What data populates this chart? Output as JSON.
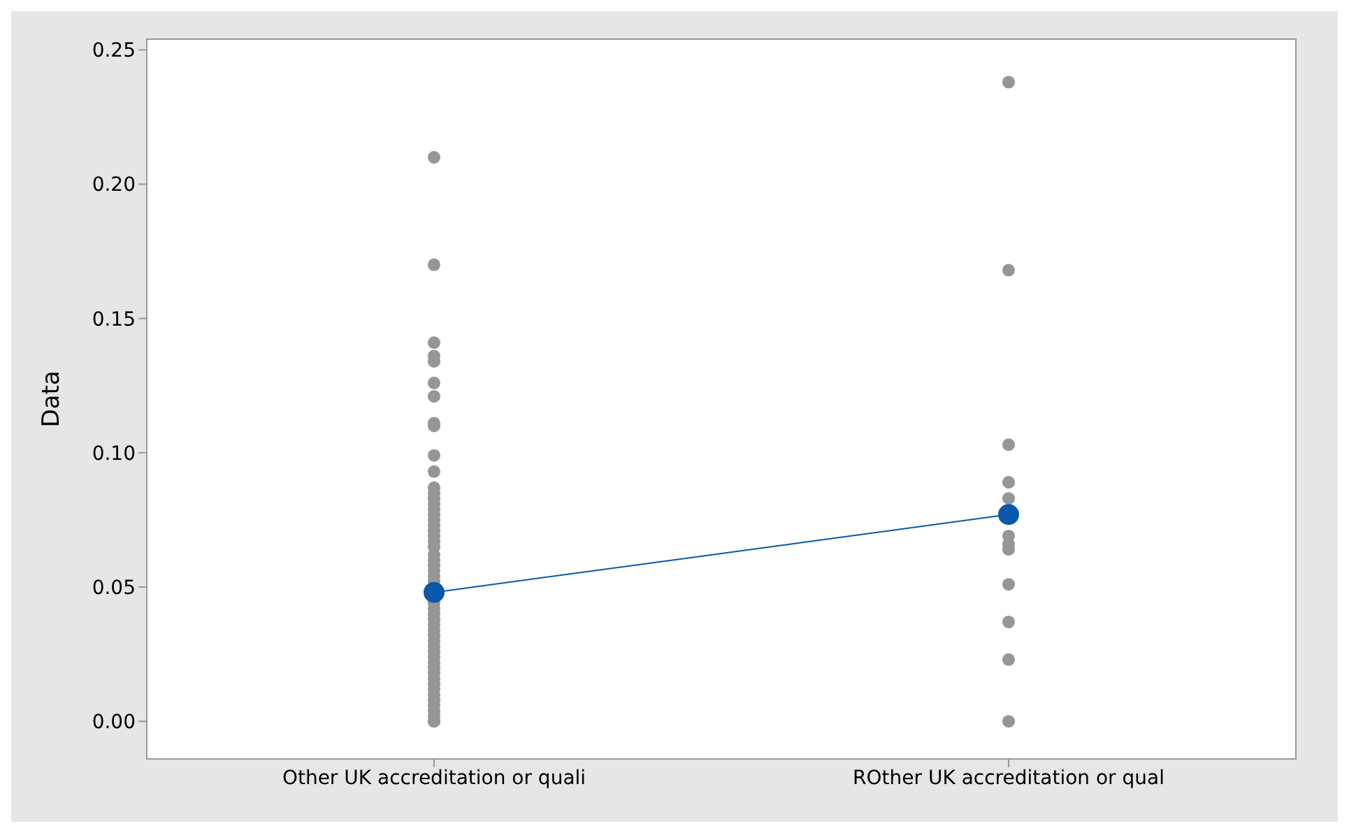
{
  "chart_data": {
    "type": "scatter",
    "ylabel": "Data",
    "categories": [
      "Other UK accreditation or quali",
      "ROther UK accreditation or qual"
    ],
    "ylim": [
      -0.014,
      0.254
    ],
    "yticks": [
      {
        "value": 0,
        "label": "0.00"
      },
      {
        "value": 0.05,
        "label": "0.05"
      },
      {
        "value": 0.1,
        "label": "0.10"
      },
      {
        "value": 0.15,
        "label": "0.15"
      },
      {
        "value": 0.2,
        "label": "0.20"
      },
      {
        "value": 0.25,
        "label": "0.25"
      }
    ],
    "series": [
      {
        "color": "#969696",
        "marker": "circle",
        "x": [
          "Other UK accreditation or quali",
          "Other UK accreditation or quali",
          "Other UK accreditation or quali",
          "Other UK accreditation or quali",
          "Other UK accreditation or quali",
          "Other UK accreditation or quali",
          "Other UK accreditation or quali",
          "Other UK accreditation or quali",
          "Other UK accreditation or quali",
          "Other UK accreditation or quali",
          "Other UK accreditation or quali",
          "Other UK accreditation or quali",
          "Other UK accreditation or quali",
          "Other UK accreditation or quali",
          "Other UK accreditation or quali",
          "Other UK accreditation or quali",
          "Other UK accreditation or quali",
          "Other UK accreditation or quali",
          "Other UK accreditation or quali",
          "Other UK accreditation or quali",
          "Other UK accreditation or quali",
          "Other UK accreditation or quali",
          "Other UK accreditation or quali",
          "Other UK accreditation or quali",
          "Other UK accreditation or quali",
          "Other UK accreditation or quali",
          "Other UK accreditation or quali",
          "Other UK accreditation or quali",
          "Other UK accreditation or quali",
          "Other UK accreditation or quali",
          "Other UK accreditation or quali",
          "Other UK accreditation or quali",
          "Other UK accreditation or quali",
          "Other UK accreditation or quali",
          "Other UK accreditation or quali",
          "Other UK accreditation or quali",
          "Other UK accreditation or quali",
          "Other UK accreditation or quali",
          "Other UK accreditation or quali",
          "Other UK accreditation or quali",
          "Other UK accreditation or quali",
          "Other UK accreditation or quali",
          "Other UK accreditation or quali",
          "Other UK accreditation or quali",
          "Other UK accreditation or quali",
          "Other UK accreditation or quali",
          "Other UK accreditation or quali",
          "Other UK accreditation or quali",
          "Other UK accreditation or quali",
          "Other UK accreditation or quali",
          "Other UK accreditation or quali",
          "Other UK accreditation or quali",
          "Other UK accreditation or quali",
          "ROther UK accreditation or qual",
          "ROther UK accreditation or qual",
          "ROther UK accreditation or qual",
          "ROther UK accreditation or qual",
          "ROther UK accreditation or qual",
          "ROther UK accreditation or qual",
          "ROther UK accreditation or qual",
          "ROther UK accreditation or qual",
          "ROther UK accreditation or qual",
          "ROther UK accreditation or qual",
          "ROther UK accreditation or qual",
          "ROther UK accreditation or qual"
        ],
        "values": [
          0.21,
          0.17,
          0.141,
          0.136,
          0.134,
          0.126,
          0.121,
          0.111,
          0.11,
          0.099,
          0.093,
          0.087,
          0.085,
          0.083,
          0.081,
          0.079,
          0.077,
          0.075,
          0.073,
          0.071,
          0.069,
          0.067,
          0.065,
          0.062,
          0.06,
          0.058,
          0.056,
          0.054,
          0.052,
          0.044,
          0.042,
          0.04,
          0.038,
          0.036,
          0.034,
          0.032,
          0.03,
          0.028,
          0.026,
          0.024,
          0.022,
          0.02,
          0.018,
          0.016,
          0.014,
          0.012,
          0.01,
          0.008,
          0.006,
          0.004,
          0.002,
          0,
          0,
          0.238,
          0.168,
          0.103,
          0.089,
          0.083,
          0.069,
          0.066,
          0.064,
          0.051,
          0.037,
          0.023,
          0
        ]
      },
      {
        "type": "line",
        "color": "#0b57a8",
        "marker": "circle",
        "line_style": "solid",
        "values": [
          0.048,
          0.077
        ]
      }
    ]
  }
}
